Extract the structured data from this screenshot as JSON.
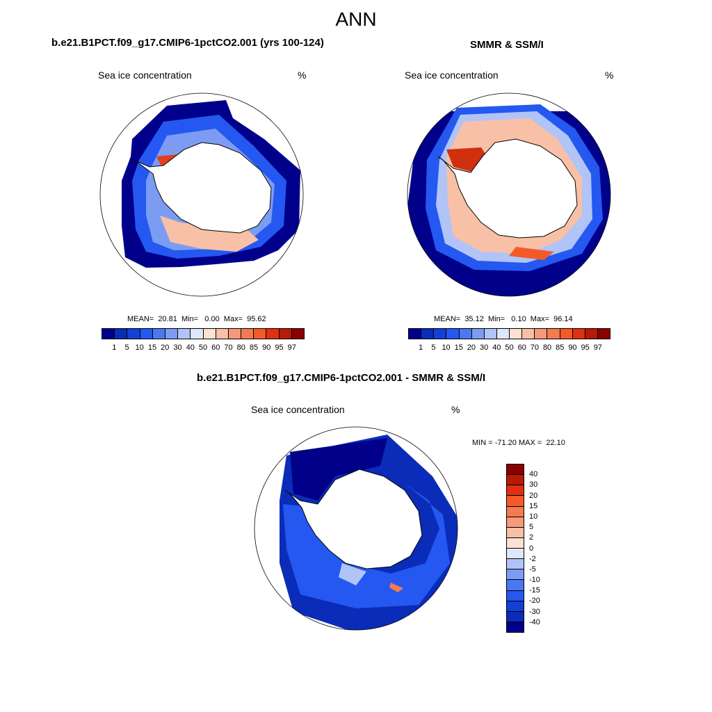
{
  "main_title": "ANN",
  "panels": [
    {
      "title": "b.e21.B1PCT.f09_g17.CMIP6-1pctCO2.001 (yrs 100-124)",
      "variable": "Sea ice concentration",
      "units": "%",
      "stats": "MEAN=  20.81  Min=   0.00  Max=  95.62"
    },
    {
      "title": "SMMR & SSM/I",
      "variable": "Sea ice concentration",
      "units": "%",
      "stats": "MEAN=  35.12  Min=   0.10  Max=  96.14"
    },
    {
      "title": "b.e21.B1PCT.f09_g17.CMIP6-1pctCO2.001 - SMMR & SSM/I",
      "variable": "Sea ice concentration",
      "units": "%",
      "stats": "MIN = -71.20 MAX =  22.10"
    }
  ],
  "colorbar_conc": {
    "ticks": [
      "1",
      "5",
      "10",
      "15",
      "20",
      "30",
      "40",
      "50",
      "60",
      "70",
      "80",
      "85",
      "90",
      "95",
      "97"
    ],
    "colors": [
      "#00008b",
      "#0a2cb8",
      "#1540d8",
      "#2458f0",
      "#4a78f2",
      "#7c9cf4",
      "#b0c4f7",
      "#dfe8fb",
      "#fde2d2",
      "#f8c0a6",
      "#f49a7a",
      "#f47a50",
      "#f45a28",
      "#e03010",
      "#b81a08",
      "#8b0000"
    ]
  },
  "colorbar_diff": {
    "ticks": [
      "40",
      "30",
      "20",
      "15",
      "10",
      "5",
      "2",
      "0",
      "-2",
      "-5",
      "-10",
      "-15",
      "-20",
      "-30",
      "-40"
    ],
    "colors": [
      "#8b0000",
      "#b81a08",
      "#e03010",
      "#f45a28",
      "#f47a50",
      "#f49a7a",
      "#f8c0a6",
      "#fde2d2",
      "#dfe8fb",
      "#b0c4f7",
      "#7c9cf4",
      "#4a78f2",
      "#2458f0",
      "#1540d8",
      "#0a2cb8",
      "#00008b"
    ]
  },
  "chart_data": [
    {
      "type": "heatmap",
      "title": "b.e21.B1PCT.f09_g17.CMIP6-1pctCO2.001 (yrs 100-124)",
      "variable": "Sea ice concentration",
      "units": "%",
      "projection": "south polar stereographic",
      "mean": 20.81,
      "min": 0.0,
      "max": 95.62,
      "contour_levels": [
        1,
        5,
        10,
        15,
        20,
        30,
        40,
        50,
        60,
        70,
        80,
        85,
        90,
        95,
        97
      ]
    },
    {
      "type": "heatmap",
      "title": "SMMR & SSM/I",
      "variable": "Sea ice concentration",
      "units": "%",
      "projection": "south polar stereographic",
      "mean": 35.12,
      "min": 0.1,
      "max": 96.14,
      "contour_levels": [
        1,
        5,
        10,
        15,
        20,
        30,
        40,
        50,
        60,
        70,
        80,
        85,
        90,
        95,
        97
      ]
    },
    {
      "type": "heatmap",
      "title": "b.e21.B1PCT.f09_g17.CMIP6-1pctCO2.001 - SMMR & SSM/I",
      "variable": "Sea ice concentration",
      "units": "%",
      "projection": "south polar stereographic",
      "min": -71.2,
      "max": 22.1,
      "contour_levels": [
        -40,
        -30,
        -20,
        -15,
        -10,
        -5,
        -2,
        0,
        2,
        5,
        10,
        15,
        20,
        30,
        40
      ]
    }
  ]
}
